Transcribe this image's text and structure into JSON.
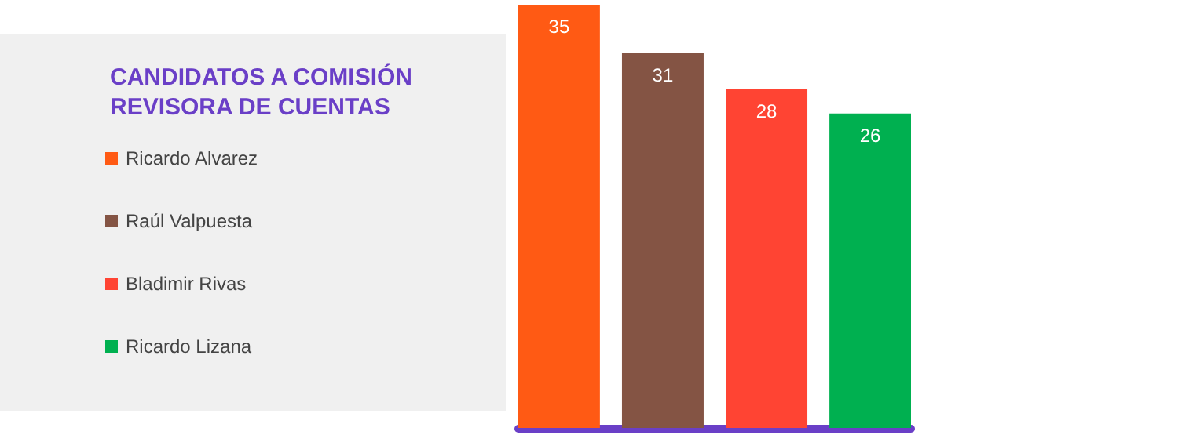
{
  "chart_data": {
    "type": "bar",
    "legend_title": "CANDIDATOS A COMISIÓN REVISORA DE CUENTAS",
    "categories": [
      null
    ],
    "series": [
      {
        "name": "Ricardo Alvarez",
        "color": "#ff5a14",
        "values": [
          35
        ]
      },
      {
        "name": "Raúl Valpuesta",
        "color": "#845444",
        "values": [
          31
        ]
      },
      {
        "name": "Bladimir Rivas",
        "color": "#ff4433",
        "values": [
          28
        ]
      },
      {
        "name": "Ricardo Lizana",
        "color": "#00b050",
        "values": [
          26
        ]
      }
    ],
    "data_labels": true,
    "legend": "left"
  }
}
